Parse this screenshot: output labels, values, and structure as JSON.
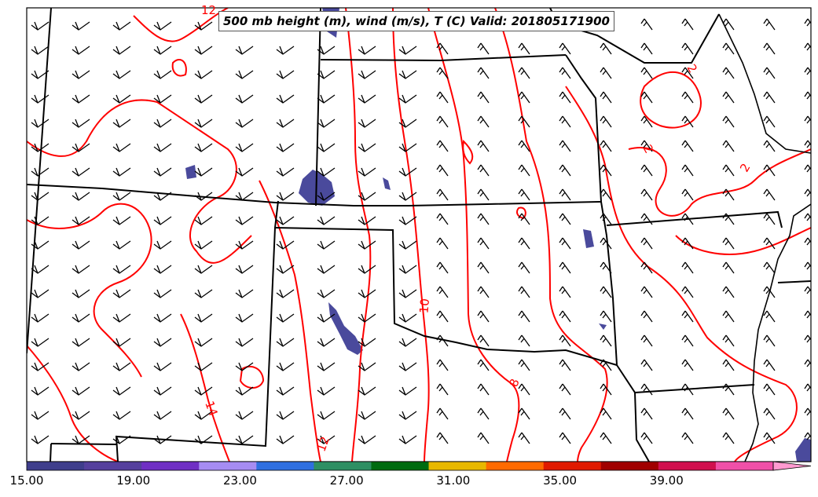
{
  "title": "500 mb height (m), wind (m/s), T (C) Valid: 201805171900",
  "colorbar": {
    "ticks": [
      "15.00",
      "19.00",
      "23.00",
      "27.00",
      "31.00",
      "35.00",
      "39.00"
    ],
    "min": 15,
    "max": 43,
    "colors": [
      "#3f3e8c",
      "#55409d",
      "#6f2fc4",
      "#a68cf2",
      "#2f6fe0",
      "#2e8f63",
      "#006b10",
      "#e8b800",
      "#ff6a00",
      "#e01a00",
      "#a00000",
      "#d0104e",
      "#f050a8",
      "#ff9ad0"
    ]
  },
  "contour_labels": [
    "12",
    "2",
    "2",
    "2",
    "10",
    "8",
    "12",
    "14"
  ],
  "colors": {
    "temperature_contour": "#ff0000",
    "borders": "#000000",
    "shading": "#4a4a9c"
  }
}
